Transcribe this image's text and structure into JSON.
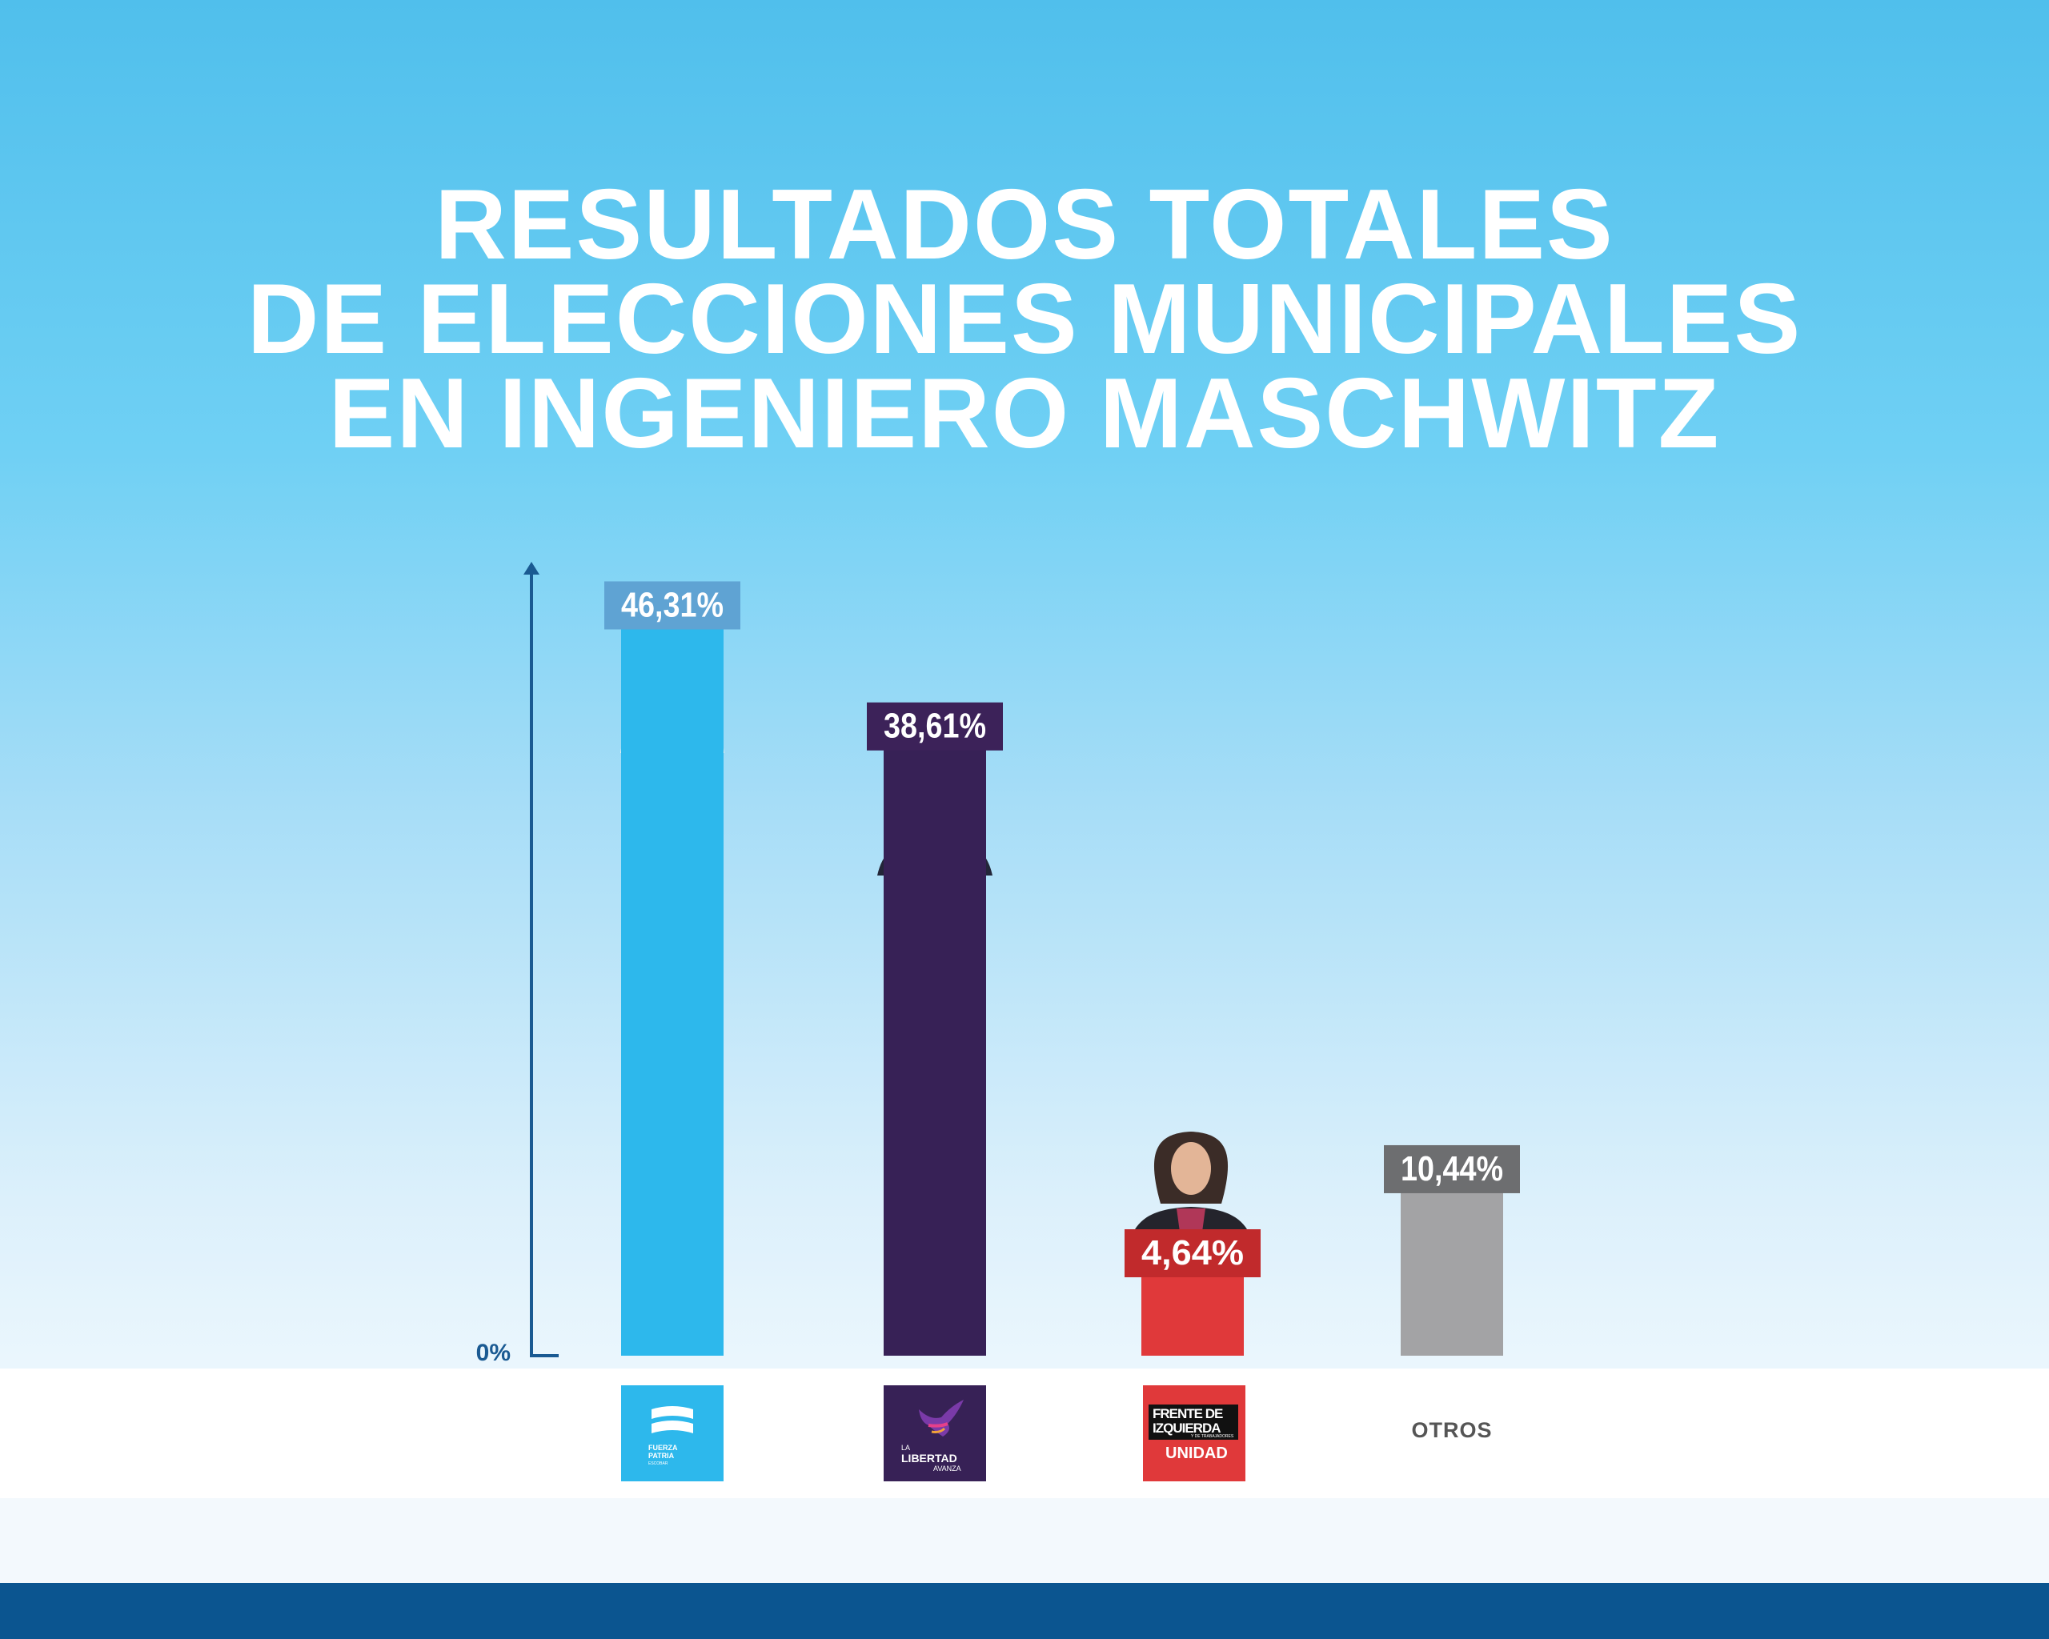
{
  "title": {
    "line1": "RESULTADOS TOTALES",
    "line2": "DE ELECCIONES MUNICIPALES",
    "line3": "EN INGENIERO MASCHWITZ"
  },
  "colors": {
    "fuerza_patria": "#2db8ec",
    "fuerza_patria_label": "#5fa3d3",
    "libertad_avanza": "#372156",
    "libertad_avanza_label": "#3c2259",
    "frente_izquierda": "#e0393a",
    "frente_izquierda_label": "#c12a2c",
    "otros": "#a3a3a5",
    "otros_label": "#6d6e70",
    "axis": "#1a5a92",
    "footer": "#0b5590"
  },
  "chart_data": {
    "type": "bar",
    "categories": [
      "Fuerza Patria",
      "La Libertad Avanza",
      "Frente de Izquierda Unidad",
      "OTROS"
    ],
    "values": [
      46.31,
      38.61,
      4.64,
      10.44
    ],
    "value_labels": [
      "46,31%",
      "38,61%",
      "4,64%",
      "10,44%"
    ],
    "ylabel": "",
    "ytick_label": "0%",
    "ylim": [
      0,
      50
    ],
    "grid": false,
    "legend": "logos below bars"
  },
  "logos": {
    "fuerza_patria": {
      "line1": "FUERZA",
      "line2": "PATRIA",
      "line3": "ESCOBAR"
    },
    "libertad_avanza": {
      "line1": "LA",
      "line2": "LIBERTAD",
      "line3": "AVANZA"
    },
    "frente_izquierda": {
      "line1": "FRENTE DE",
      "line2": "IZQUIERDA",
      "line3": "Y DE TRABAJADORES",
      "line4": "UNIDAD"
    }
  },
  "otros_label": "OTROS"
}
